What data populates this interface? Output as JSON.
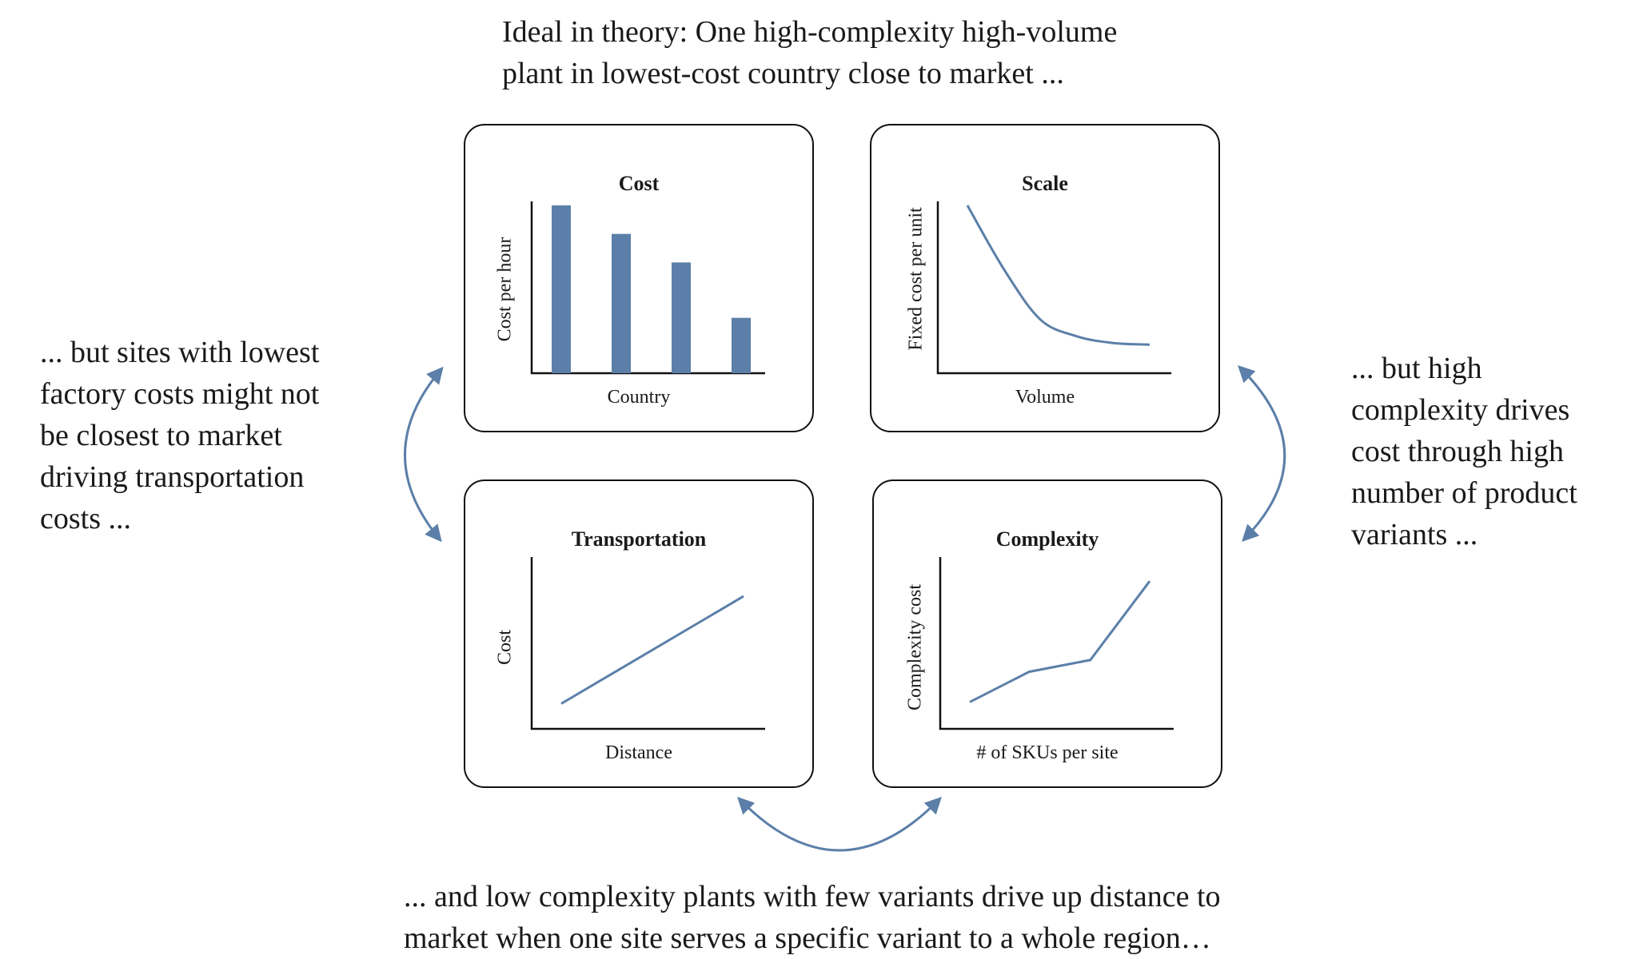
{
  "notes": {
    "top": [
      "Ideal in theory: One high-complexity high-volume",
      "plant in lowest-cost country close to market ..."
    ],
    "left": [
      "... but sites with lowest",
      "factory costs might not",
      "be closest to market",
      "driving transportation",
      "costs ..."
    ],
    "right": [
      "... but high",
      "complexity drives",
      "cost through high",
      "number of  product",
      "variants ..."
    ],
    "bottom": [
      "... and low complexity plants with few variants drive up distance to",
      "market when one site serves a specific variant to a whole region…"
    ]
  },
  "colors": {
    "accent": "#5b7fa8",
    "border": "#111111"
  },
  "chart_data": [
    {
      "type": "bar",
      "title": "Cost",
      "xlabel": "Country",
      "ylabel": "Cost per hour",
      "values": [
        100,
        83,
        66,
        33
      ],
      "ylim": [
        0,
        100
      ]
    },
    {
      "type": "line",
      "title": "Scale",
      "xlabel": "Volume",
      "ylabel": "Fixed cost per unit",
      "x": [
        0,
        0.2,
        0.4,
        0.6,
        0.8,
        1.0
      ],
      "y": [
        100,
        62,
        32,
        22,
        18,
        17
      ],
      "ylim": [
        0,
        100
      ]
    },
    {
      "type": "line",
      "title": "Transportation",
      "xlabel": "Distance",
      "ylabel": "Cost",
      "x": [
        0,
        1
      ],
      "y": [
        15,
        79
      ],
      "ylim": [
        0,
        100
      ]
    },
    {
      "type": "line",
      "title": "Complexity",
      "xlabel": "# of SKUs per site",
      "ylabel": "Complexity cost",
      "x": [
        0,
        0.33,
        0.67,
        1.0
      ],
      "y": [
        16,
        34,
        41,
        88
      ],
      "ylim": [
        0,
        100
      ]
    }
  ]
}
